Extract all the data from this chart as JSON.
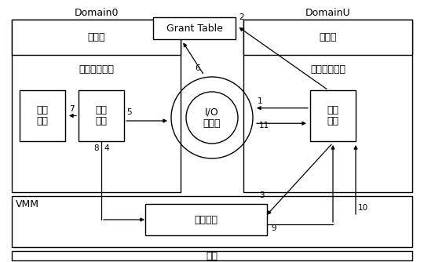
{
  "title_left": "Domain0",
  "title_right": "DomainU",
  "bg_color": "#ffffff",
  "userstate_label": "用户态",
  "modified_kernel_label": "修改过的内核",
  "unmodified_kernel_label": "未修改的内核",
  "real_driver_label": "真实\n驱动",
  "backend_label": "后端\n驱动",
  "frontend_label": "前端\n驱动",
  "io_ring_label": "I/O\n共享环",
  "event_channel_label": "事件通道",
  "hardware_label": "硬件",
  "grant_table_label": "Grant Table",
  "vmm_label": "VMM"
}
